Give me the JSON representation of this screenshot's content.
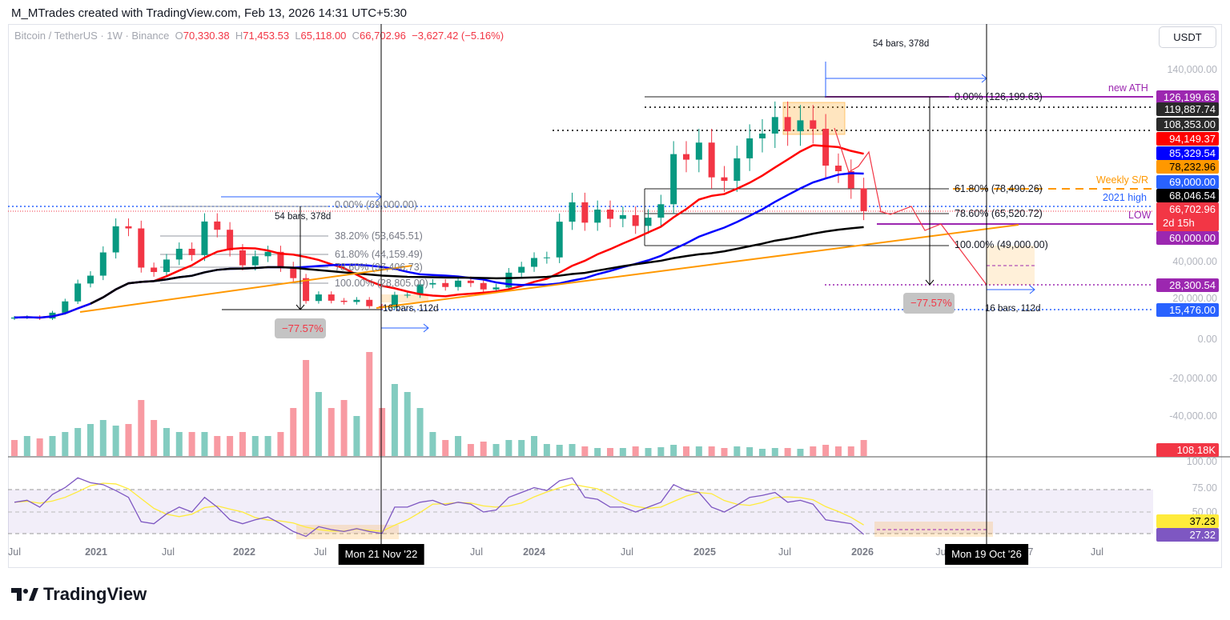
{
  "credit": "M_MTrades created with TradingView.com, Feb 13, 2026 14:31 UTC+5:30",
  "legend": {
    "symbol": "Bitcoin / TetherUS · 1W · Binance",
    "o_label": "O",
    "o": "70,330.38",
    "h_label": "H",
    "h": "71,453.53",
    "l_label": "L",
    "l": "65,118.00",
    "c_label": "C",
    "c": "66,702.96",
    "change": "−3,627.42 (−5.16%)"
  },
  "currency": "USDT",
  "logo": "TradingView",
  "colors": {
    "up": "#089981",
    "down": "#f23645",
    "ma50": "#ff0000",
    "ma100": "#0000ff",
    "ma200": "#000000",
    "trend": "#ff9800",
    "rsi": "#7e57c2",
    "rsi_ma": "#ffeb3b"
  },
  "drawings": {
    "left_fib": [
      "0.00% (69,000.00)",
      "38.20% (53,645.51)",
      "61.80% (44,159.49)",
      "78.60% (37,406.73)",
      "100.00% (28,805.00)"
    ],
    "right_fib": [
      "0.00% (126,199.63)",
      "61.80% (78,490.26)",
      "78.60% (65,520.72)",
      "100.00% (49,000.00)"
    ],
    "left_range": "54 bars, 378d",
    "left_range2": "16 bars, 112d",
    "left_drop": "−77.57%",
    "right_range": "54 bars, 378d",
    "right_range2": "16 bars, 112d",
    "right_drop": "−77.57%",
    "new_ath": "new ATH",
    "weekly_sr": "Weekly S/R",
    "high_2021": "2021 high",
    "low": "LOW"
  },
  "price_tags": [
    {
      "v": "126,199.63",
      "bg": "#9c27b0",
      "fg": "#fff"
    },
    {
      "v": "119,887.74",
      "bg": "#2a2a2a",
      "fg": "#fff"
    },
    {
      "v": "108,353.00",
      "bg": "#2a2a2a",
      "fg": "#fff"
    },
    {
      "v": "94,149.37",
      "bg": "#ff0000",
      "fg": "#fff"
    },
    {
      "v": "85,329.54",
      "bg": "#0000ff",
      "fg": "#fff"
    },
    {
      "v": "78,232.96",
      "bg": "#ff9800",
      "fg": "#000"
    },
    {
      "v": "69,000.00",
      "bg": "#2962ff",
      "fg": "#fff"
    },
    {
      "v": "68,046.54",
      "bg": "#000000",
      "fg": "#fff"
    },
    {
      "v": "66,702.96",
      "bg": "#f23645",
      "fg": "#fff"
    },
    {
      "v": "60,000.00",
      "bg": "#9c27b0",
      "fg": "#fff"
    },
    {
      "v": "28,300.54",
      "bg": "#9c27b0",
      "fg": "#fff"
    },
    {
      "v": "15,476.00",
      "bg": "#2962ff",
      "fg": "#fff"
    },
    {
      "v": "108.18K",
      "bg": "#f23645",
      "fg": "#fff"
    },
    {
      "v": "37.23",
      "bg": "#ffeb3b",
      "fg": "#000"
    },
    {
      "v": "27.32",
      "bg": "#7e57c2",
      "fg": "#fff"
    }
  ],
  "countdown": "2d 15h",
  "price_axis": [
    "140,000.00",
    "40,000.00",
    "20,000.00",
    "0.00",
    "-20,000.00",
    "-40,000.00",
    "100.00",
    "75.00",
    "50.00"
  ],
  "time_axis": [
    "Jul",
    "2021",
    "Jul",
    "2022",
    "Jul",
    "Jul",
    "2024",
    "Jul",
    "2025",
    "Jul",
    "2026",
    "Ju",
    "7",
    "Jul"
  ],
  "crosshair": [
    "Mon 21 Nov '22",
    "Mon 19 Oct '26"
  ],
  "chart_data": {
    "type": "candlestick",
    "title": "Bitcoin / TetherUS · 1W · Binance",
    "x_start": "2020-07",
    "x_step": "month",
    "closes": [
      11300,
      11650,
      10780,
      13800,
      19700,
      29000,
      33100,
      45200,
      58800,
      57700,
      37300,
      35000,
      41500,
      47100,
      43800,
      61300,
      57000,
      46300,
      38500,
      43200,
      45500,
      37700,
      31800,
      19900,
      23300,
      20050,
      19400,
      20500,
      17200,
      16550,
      23100,
      23150,
      28500,
      29250,
      27200,
      30500,
      29250,
      25950,
      26950,
      34650,
      37700,
      42300,
      42600,
      61200,
      71300,
      60700,
      67500,
      62700,
      64600,
      59000,
      63300,
      70300,
      96400,
      93500,
      102400,
      84300,
      82500,
      94200,
      104600,
      107100,
      115700,
      108300,
      114000,
      109600,
      90400,
      87500,
      78600,
      66700
    ],
    "volume_k": [
      20,
      25,
      22,
      25,
      30,
      35,
      40,
      45,
      38,
      40,
      70,
      45,
      35,
      30,
      30,
      30,
      25,
      25,
      30,
      25,
      25,
      30,
      60,
      120,
      80,
      60,
      70,
      50,
      130,
      60,
      90,
      80,
      60,
      30,
      20,
      25,
      15,
      18,
      15,
      20,
      20,
      25,
      15,
      14,
      15,
      12,
      10,
      10,
      10,
      12,
      10,
      11,
      14,
      12,
      12,
      12,
      10,
      12,
      11,
      9,
      10,
      10,
      9,
      12,
      14,
      12,
      12,
      20
    ],
    "rsi": [
      60,
      62,
      55,
      68,
      75,
      85,
      80,
      78,
      72,
      65,
      40,
      38,
      48,
      55,
      50,
      65,
      55,
      42,
      38,
      42,
      45,
      38,
      30,
      25,
      35,
      32,
      30,
      33,
      30,
      28,
      55,
      55,
      60,
      62,
      57,
      60,
      58,
      50,
      52,
      65,
      70,
      75,
      72,
      82,
      85,
      65,
      63,
      55,
      55,
      50,
      55,
      60,
      78,
      72,
      70,
      55,
      50,
      57,
      65,
      67,
      70,
      60,
      62,
      58,
      42,
      40,
      38,
      27
    ],
    "ylim": [
      -40000,
      140000
    ],
    "rsi_ylim": [
      0,
      100
    ],
    "scale": "linear"
  }
}
